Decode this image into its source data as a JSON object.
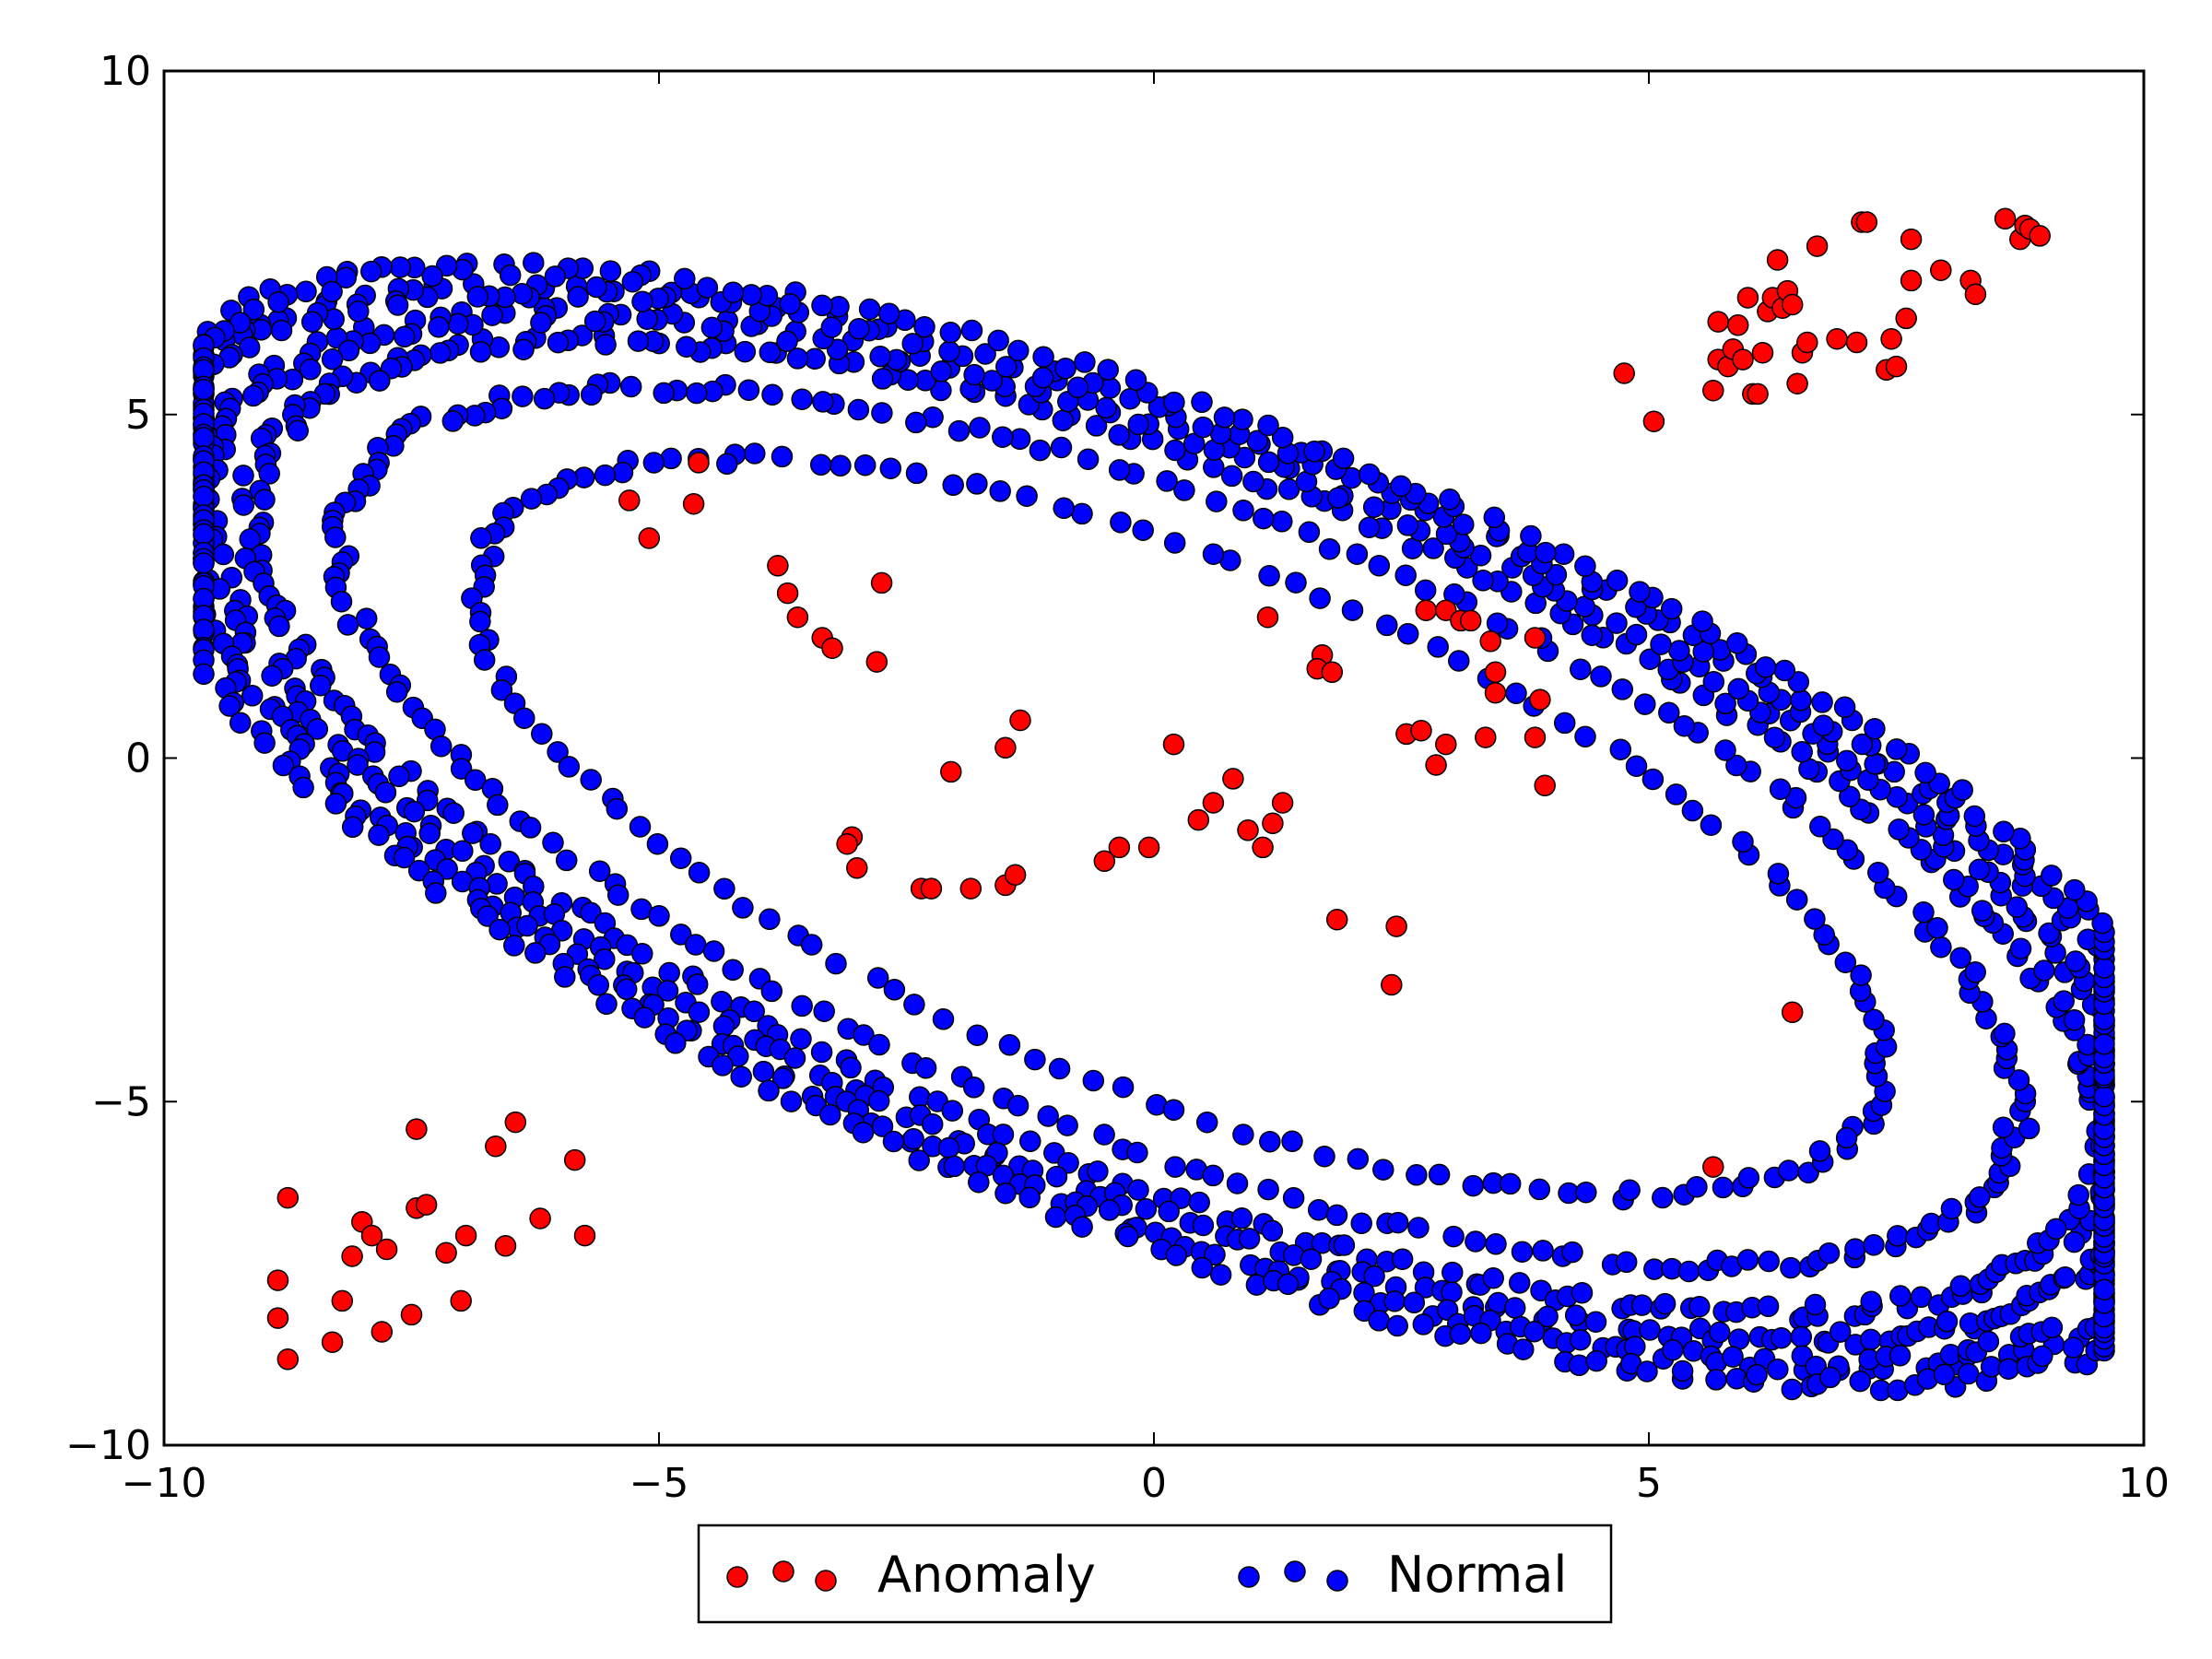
{
  "chart_data": {
    "type": "scatter",
    "title": "",
    "xlabel": "",
    "ylabel": "",
    "xlim": [
      -10,
      10
    ],
    "ylim": [
      -10,
      10
    ],
    "x_ticks": [
      "−10",
      "−5",
      "0",
      "5",
      "10"
    ],
    "y_ticks": [
      "10",
      "5",
      "0",
      "−5",
      "−10"
    ],
    "grid": false,
    "legend": {
      "placement": "bottom-center-outside",
      "ncol": 2,
      "marker_count": 3
    },
    "series": [
      {
        "name": "Normal",
        "color": "#0000ff",
        "edge_color": "#000000",
        "generator": {
          "shape": "concentric-ellipse-rings",
          "center": [
            0.25,
            -1.0
          ],
          "semi_axes": [
            11.3,
            5.0
          ],
          "rotation_deg": -33,
          "rings": [
            {
              "scale": 0.72,
              "points": 150
            },
            {
              "scale": 0.86,
              "points": 220
            },
            {
              "scale": 0.95,
              "points": 300
            },
            {
              "scale": 1.0,
              "points": 340
            },
            {
              "scale": 1.05,
              "points": 380
            },
            {
              "scale": 1.09,
              "points": 300
            }
          ]
        }
      },
      {
        "name": "Anomaly",
        "color": "#ff0000",
        "edge_color": "#000000",
        "points": [
          [
            -5.3,
            3.75
          ],
          [
            -5.1,
            3.2
          ],
          [
            -4.6,
            4.3
          ],
          [
            -4.65,
            3.7
          ],
          [
            -3.8,
            2.8
          ],
          [
            -3.7,
            2.4
          ],
          [
            -3.6,
            2.05
          ],
          [
            -3.35,
            1.75
          ],
          [
            -3.25,
            1.6
          ],
          [
            -2.75,
            2.55
          ],
          [
            -2.8,
            1.4
          ],
          [
            1.15,
            2.05
          ],
          [
            1.7,
            1.5
          ],
          [
            1.65,
            1.3
          ],
          [
            1.8,
            1.25
          ],
          [
            2.75,
            2.15
          ],
          [
            2.95,
            2.15
          ],
          [
            3.1,
            2.0
          ],
          [
            3.2,
            2.0
          ],
          [
            3.4,
            1.7
          ],
          [
            3.45,
            1.25
          ],
          [
            3.45,
            0.95
          ],
          [
            3.85,
            1.75
          ],
          [
            3.9,
            0.85
          ],
          [
            3.95,
            -0.4
          ],
          [
            3.35,
            0.3
          ],
          [
            3.85,
            0.3
          ],
          [
            2.55,
            0.35
          ],
          [
            2.7,
            0.4
          ],
          [
            2.85,
            -0.1
          ],
          [
            2.95,
            0.2
          ],
          [
            -1.35,
            0.55
          ],
          [
            -1.5,
            0.15
          ],
          [
            -2.05,
            -0.2
          ],
          [
            0.2,
            0.2
          ],
          [
            -3.05,
            -1.15
          ],
          [
            -3.1,
            -1.25
          ],
          [
            -3.0,
            -1.6
          ],
          [
            -2.35,
            -1.9
          ],
          [
            -2.25,
            -1.9
          ],
          [
            -1.85,
            -1.9
          ],
          [
            -1.5,
            -1.85
          ],
          [
            -1.4,
            -1.7
          ],
          [
            -0.5,
            -1.5
          ],
          [
            -0.35,
            -1.3
          ],
          [
            -0.05,
            -1.3
          ],
          [
            0.45,
            -0.9
          ],
          [
            0.6,
            -0.65
          ],
          [
            0.8,
            -0.3
          ],
          [
            0.95,
            -1.05
          ],
          [
            1.1,
            -1.3
          ],
          [
            1.2,
            -0.95
          ],
          [
            1.3,
            -0.65
          ],
          [
            1.85,
            -2.35
          ],
          [
            2.45,
            -2.45
          ],
          [
            2.4,
            -3.3
          ],
          [
            6.45,
            -3.7
          ],
          [
            5.65,
            -5.95
          ],
          [
            -8.75,
            -6.4
          ],
          [
            -8.85,
            -7.6
          ],
          [
            -8.85,
            -8.15
          ],
          [
            -8.75,
            -8.75
          ],
          [
            -8.3,
            -8.5
          ],
          [
            -8.2,
            -7.9
          ],
          [
            -8.1,
            -7.25
          ],
          [
            -8.0,
            -6.75
          ],
          [
            -7.9,
            -6.95
          ],
          [
            -7.75,
            -7.15
          ],
          [
            -7.8,
            -8.35
          ],
          [
            -7.5,
            -8.1
          ],
          [
            -7.45,
            -6.55
          ],
          [
            -7.35,
            -6.5
          ],
          [
            -7.45,
            -5.4
          ],
          [
            -7.15,
            -7.2
          ],
          [
            -7.0,
            -7.9
          ],
          [
            -6.95,
            -6.95
          ],
          [
            -6.65,
            -5.65
          ],
          [
            -6.55,
            -7.1
          ],
          [
            -6.45,
            -5.3
          ],
          [
            -6.2,
            -6.7
          ],
          [
            -5.85,
            -5.85
          ],
          [
            -5.75,
            -6.95
          ],
          [
            4.75,
            5.6
          ],
          [
            5.05,
            4.9
          ],
          [
            5.65,
            5.35
          ],
          [
            5.7,
            5.8
          ],
          [
            5.7,
            6.35
          ],
          [
            5.8,
            5.7
          ],
          [
            5.85,
            5.95
          ],
          [
            5.9,
            6.3
          ],
          [
            5.95,
            5.8
          ],
          [
            6.0,
            6.7
          ],
          [
            6.05,
            5.3
          ],
          [
            6.1,
            5.3
          ],
          [
            6.15,
            5.9
          ],
          [
            6.2,
            6.5
          ],
          [
            6.25,
            6.7
          ],
          [
            6.3,
            7.25
          ],
          [
            6.35,
            6.55
          ],
          [
            6.4,
            6.8
          ],
          [
            6.45,
            6.6
          ],
          [
            6.5,
            5.45
          ],
          [
            6.55,
            5.9
          ],
          [
            6.6,
            6.05
          ],
          [
            6.7,
            7.45
          ],
          [
            6.9,
            6.1
          ],
          [
            7.1,
            6.05
          ],
          [
            7.15,
            7.8
          ],
          [
            7.2,
            7.8
          ],
          [
            7.4,
            5.65
          ],
          [
            7.5,
            5.7
          ],
          [
            7.45,
            6.1
          ],
          [
            7.6,
            6.4
          ],
          [
            7.65,
            6.95
          ],
          [
            7.65,
            7.55
          ],
          [
            7.95,
            7.1
          ],
          [
            8.25,
            6.95
          ],
          [
            8.3,
            6.75
          ],
          [
            8.6,
            7.85
          ],
          [
            8.75,
            7.55
          ],
          [
            8.8,
            7.75
          ],
          [
            8.85,
            7.7
          ],
          [
            8.95,
            7.6
          ]
        ]
      }
    ]
  }
}
